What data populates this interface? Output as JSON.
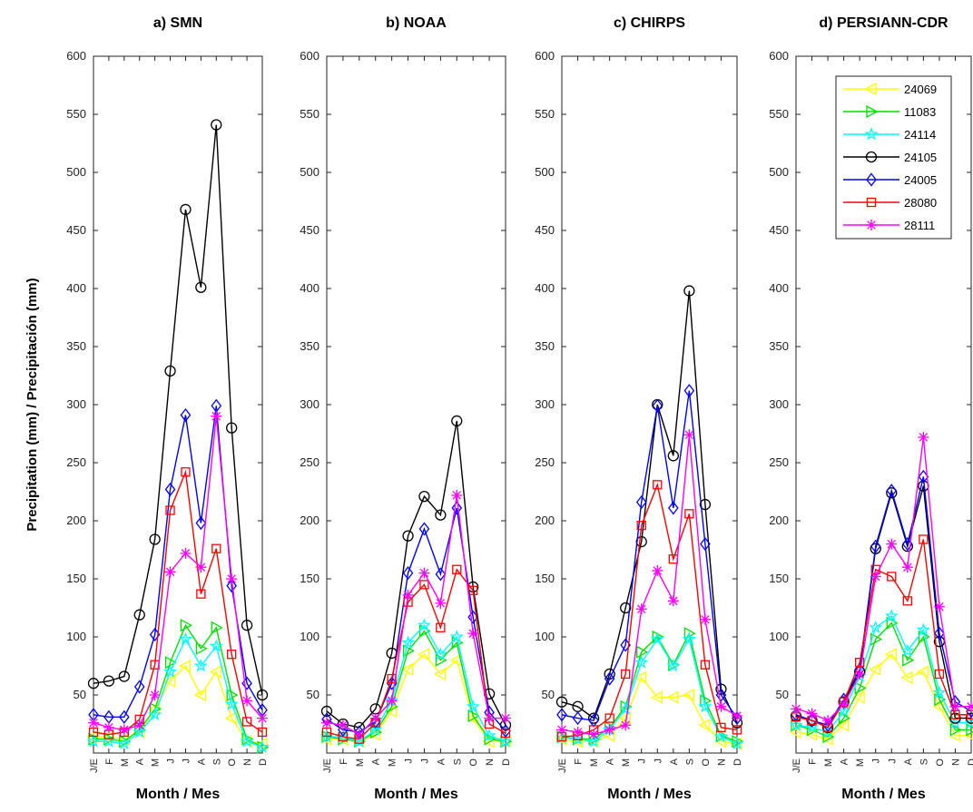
{
  "chart_data": [
    {
      "type": "line",
      "title": "a) SMN",
      "xlabel": "Month / Mes",
      "ylabel": "Precipitation (mm) / Precipitación (mm)",
      "ylim": [
        0,
        600
      ],
      "yticks": [
        50,
        100,
        150,
        200,
        250,
        300,
        350,
        400,
        450,
        500,
        550,
        600
      ],
      "categories": [
        "J/E",
        "F",
        "M",
        "A",
        "M",
        "J",
        "J",
        "A",
        "S",
        "O",
        "N",
        "D"
      ],
      "series": [
        {
          "name": "24069",
          "color": "#ffff00",
          "marker": "triangle-left",
          "values": [
            14,
            14,
            12,
            18,
            38,
            62,
            75,
            50,
            70,
            30,
            10,
            8
          ]
        },
        {
          "name": "11083",
          "color": "#00e000",
          "marker": "triangle-right",
          "values": [
            12,
            12,
            10,
            20,
            38,
            78,
            110,
            90,
            108,
            50,
            12,
            5
          ]
        },
        {
          "name": "24114",
          "color": "#00ffff",
          "marker": "star",
          "values": [
            10,
            10,
            8,
            18,
            33,
            70,
            98,
            75,
            92,
            42,
            10,
            5
          ]
        },
        {
          "name": "24105",
          "color": "#000000",
          "marker": "circle",
          "values": [
            60,
            62,
            66,
            119,
            184,
            329,
            468,
            401,
            541,
            280,
            110,
            50
          ]
        },
        {
          "name": "24005",
          "color": "#0000ff",
          "marker": "diamond",
          "values": [
            33,
            31,
            31,
            57,
            102,
            227,
            291,
            198,
            299,
            144,
            60,
            37
          ]
        },
        {
          "name": "28080",
          "color": "#ff0000",
          "marker": "square",
          "values": [
            18,
            16,
            18,
            29,
            76,
            209,
            242,
            137,
            176,
            85,
            27,
            18
          ]
        },
        {
          "name": "28111",
          "color": "#ff00ff",
          "marker": "asterisk",
          "values": [
            26,
            22,
            20,
            24,
            50,
            156,
            172,
            160,
            290,
            150,
            45,
            30
          ]
        }
      ]
    },
    {
      "type": "line",
      "title": "b) NOAA",
      "xlabel": "Month / Mes",
      "ylim": [
        0,
        600
      ],
      "yticks": [
        50,
        100,
        150,
        200,
        250,
        300,
        350,
        400,
        450,
        500,
        550,
        600
      ],
      "categories": [
        "J/E",
        "F",
        "M",
        "A",
        "M",
        "J",
        "J",
        "A",
        "S",
        "O",
        "N",
        "D"
      ],
      "series": [
        {
          "name": "24069",
          "color": "#ffff00",
          "marker": "triangle-left",
          "values": [
            12,
            12,
            10,
            16,
            36,
            72,
            85,
            68,
            80,
            30,
            10,
            10
          ]
        },
        {
          "name": "11083",
          "color": "#00e000",
          "marker": "triangle-right",
          "values": [
            14,
            12,
            10,
            18,
            40,
            88,
            105,
            80,
            95,
            32,
            12,
            10
          ]
        },
        {
          "name": "24114",
          "color": "#00ffff",
          "marker": "star",
          "values": [
            14,
            14,
            10,
            20,
            45,
            95,
            110,
            85,
            100,
            40,
            15,
            10
          ]
        },
        {
          "name": "24105",
          "color": "#000000",
          "marker": "circle",
          "values": [
            36,
            25,
            22,
            38,
            86,
            187,
            221,
            205,
            286,
            143,
            51,
            24
          ]
        },
        {
          "name": "24005",
          "color": "#0000ff",
          "marker": "diamond",
          "values": [
            29,
            20,
            18,
            27,
            60,
            155,
            193,
            154,
            211,
            117,
            35,
            19
          ]
        },
        {
          "name": "28080",
          "color": "#ff0000",
          "marker": "square",
          "values": [
            18,
            14,
            12,
            26,
            64,
            130,
            145,
            108,
            158,
            140,
            25,
            17
          ]
        },
        {
          "name": "28111",
          "color": "#ff00ff",
          "marker": "asterisk",
          "values": [
            26,
            24,
            16,
            30,
            45,
            136,
            155,
            129,
            222,
            103,
            30,
            30
          ]
        }
      ]
    },
    {
      "type": "line",
      "title": "c) CHIRPS",
      "xlabel": "Month / Mes",
      "ylim": [
        0,
        600
      ],
      "yticks": [
        50,
        100,
        150,
        200,
        250,
        300,
        350,
        400,
        450,
        500,
        550,
        600
      ],
      "categories": [
        "J/E",
        "F",
        "M",
        "A",
        "M",
        "J",
        "J",
        "A",
        "S",
        "O",
        "N",
        "D"
      ],
      "series": [
        {
          "name": "24069",
          "color": "#ffff00",
          "marker": "triangle-left",
          "values": [
            12,
            10,
            10,
            15,
            30,
            65,
            48,
            48,
            50,
            24,
            10,
            8
          ]
        },
        {
          "name": "11083",
          "color": "#00e000",
          "marker": "triangle-right",
          "values": [
            14,
            12,
            12,
            22,
            40,
            87,
            100,
            76,
            103,
            45,
            15,
            10
          ]
        },
        {
          "name": "24114",
          "color": "#00ffff",
          "marker": "star",
          "values": [
            13,
            12,
            10,
            20,
            38,
            78,
            98,
            75,
            98,
            40,
            14,
            8
          ]
        },
        {
          "name": "24105",
          "color": "#000000",
          "marker": "circle",
          "values": [
            44,
            40,
            30,
            68,
            125,
            182,
            300,
            256,
            398,
            214,
            55,
            26
          ]
        },
        {
          "name": "24005",
          "color": "#0000ff",
          "marker": "diamond",
          "values": [
            33,
            30,
            28,
            64,
            93,
            216,
            299,
            211,
            312,
            180,
            50,
            30
          ]
        },
        {
          "name": "28080",
          "color": "#ff0000",
          "marker": "square",
          "values": [
            14,
            15,
            20,
            30,
            68,
            196,
            231,
            167,
            206,
            76,
            22,
            20
          ]
        },
        {
          "name": "28111",
          "color": "#ff00ff",
          "marker": "asterisk",
          "values": [
            20,
            18,
            16,
            20,
            24,
            124,
            157,
            131,
            274,
            115,
            40,
            32
          ]
        }
      ]
    },
    {
      "type": "line",
      "title": "d) PERSIANN-CDR",
      "xlabel": "Month / Mes",
      "ylim": [
        0,
        600
      ],
      "yticks": [
        50,
        100,
        150,
        200,
        250,
        300,
        350,
        400,
        450,
        500,
        550,
        600
      ],
      "categories": [
        "J/E",
        "F",
        "M",
        "A",
        "M",
        "J",
        "J",
        "A",
        "S",
        "O",
        "N",
        "D"
      ],
      "legend": "top-right",
      "series": [
        {
          "name": "24069",
          "color": "#ffff00",
          "marker": "triangle-left",
          "values": [
            18,
            16,
            12,
            24,
            48,
            72,
            85,
            65,
            70,
            40,
            15,
            15
          ]
        },
        {
          "name": "11083",
          "color": "#00e000",
          "marker": "triangle-right",
          "values": [
            24,
            20,
            14,
            30,
            56,
            98,
            112,
            80,
            100,
            46,
            20,
            20
          ]
        },
        {
          "name": "24114",
          "color": "#00ffff",
          "marker": "star",
          "values": [
            24,
            22,
            18,
            36,
            66,
            108,
            118,
            88,
            106,
            52,
            26,
            26
          ]
        },
        {
          "name": "24105",
          "color": "#000000",
          "marker": "circle",
          "values": [
            32,
            28,
            22,
            44,
            70,
            176,
            224,
            178,
            230,
            96,
            30,
            30
          ]
        },
        {
          "name": "24005",
          "color": "#0000ff",
          "marker": "diamond",
          "values": [
            33,
            28,
            24,
            46,
            72,
            178,
            226,
            180,
            238,
            103,
            44,
            36
          ]
        },
        {
          "name": "28080",
          "color": "#ff0000",
          "marker": "square",
          "values": [
            31,
            28,
            22,
            44,
            78,
            158,
            152,
            131,
            184,
            68,
            33,
            33
          ]
        },
        {
          "name": "28111",
          "color": "#ff00ff",
          "marker": "asterisk",
          "values": [
            38,
            34,
            28,
            42,
            68,
            152,
            180,
            160,
            272,
            126,
            40,
            40
          ]
        }
      ]
    }
  ]
}
